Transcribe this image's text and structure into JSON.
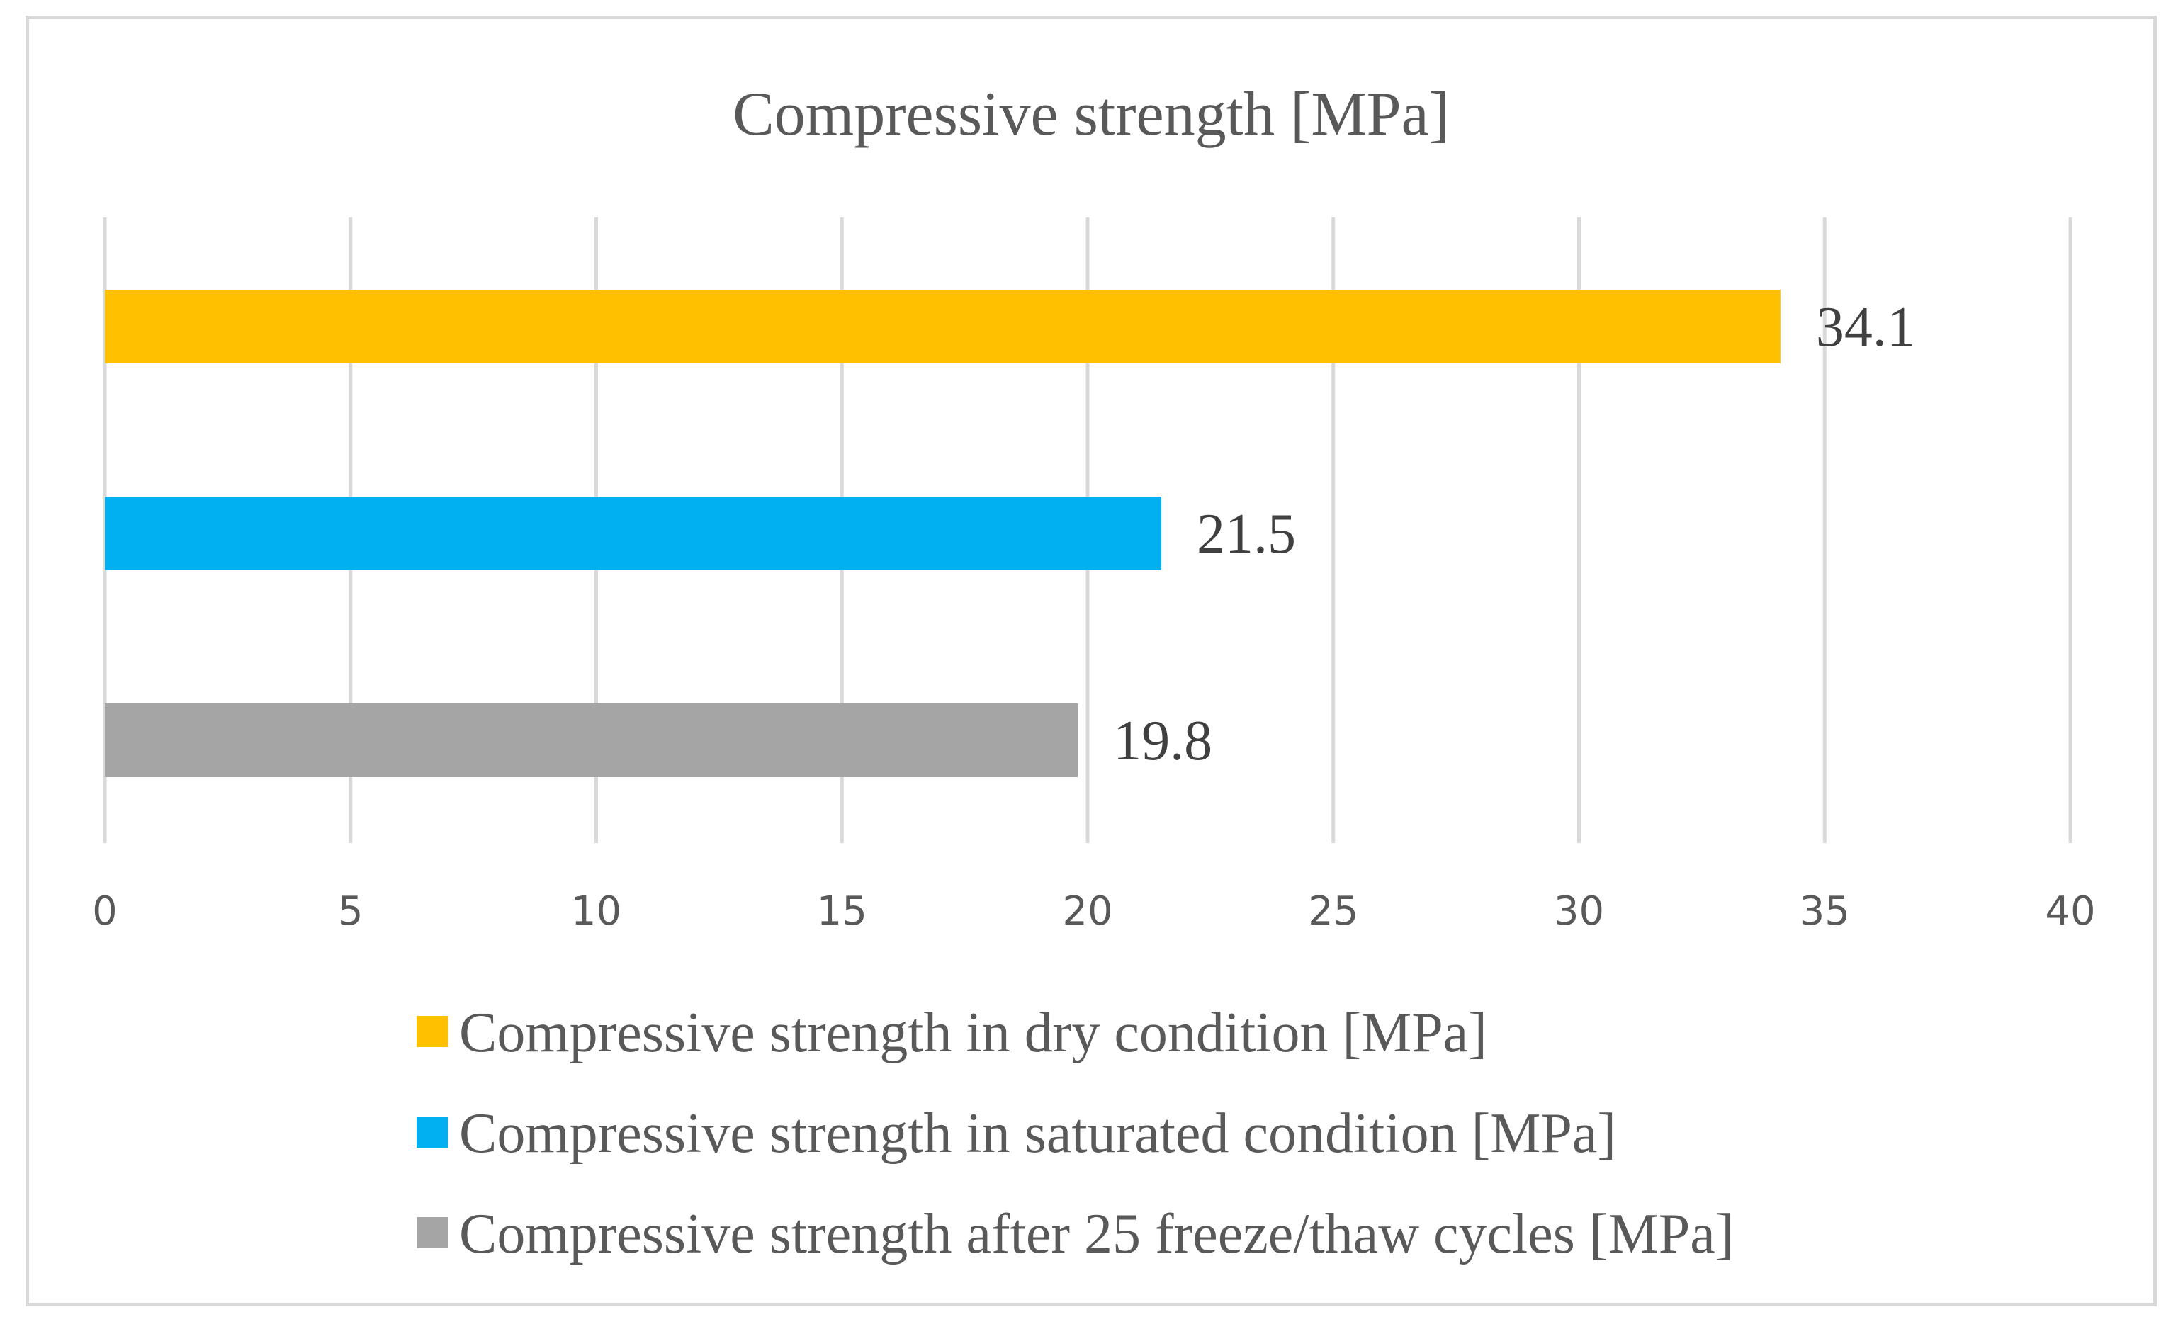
{
  "chart_data": {
    "type": "bar",
    "orientation": "horizontal",
    "title": "Compressive strength [MPa]",
    "xlim": [
      0,
      40
    ],
    "x_ticks": [
      "0",
      "5",
      "10",
      "15",
      "20",
      "25",
      "30",
      "35",
      "40"
    ],
    "grid": true,
    "legend_position": "bottom",
    "series": [
      {
        "name": "Compressive strength in dry condition [MPa]",
        "value": 34.1,
        "label": "34.1",
        "color": "#FFC000"
      },
      {
        "name": "Compressive strength in saturated condition [MPa]",
        "value": 21.5,
        "label": "21.5",
        "color": "#00B0F0"
      },
      {
        "name": "Compressive strength after 25 freeze/thaw cycles [MPa]",
        "value": 19.8,
        "label": "19.8",
        "color": "#A5A5A5"
      }
    ]
  }
}
